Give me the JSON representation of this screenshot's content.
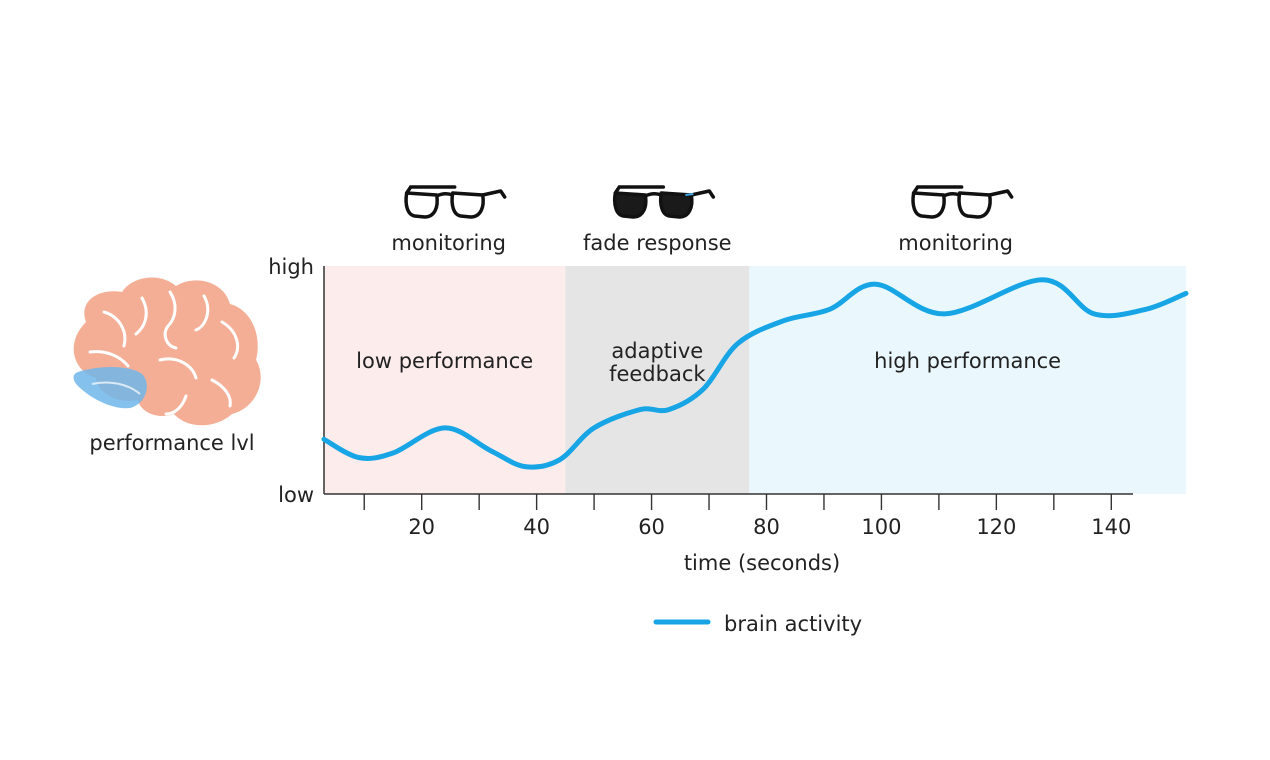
{
  "chart_data": {
    "type": "line",
    "title": "",
    "xlabel": "time (seconds)",
    "ylabel": "performance lvl",
    "xlim": [
      3,
      153
    ],
    "ylim": [
      0,
      1
    ],
    "x_ticks": [
      10,
      20,
      30,
      40,
      50,
      60,
      70,
      80,
      90,
      100,
      110,
      120,
      130,
      140
    ],
    "x_tick_labels": [
      "20",
      "40",
      "60",
      "80",
      "100",
      "120",
      "140"
    ],
    "x_tick_label_values": [
      20,
      40,
      60,
      80,
      100,
      120,
      140
    ],
    "y_tick_labels": [
      "high",
      "low"
    ],
    "y_tick_label_values": [
      1,
      0
    ],
    "phases": [
      {
        "start": 3,
        "end": 45,
        "color": "#fdecec",
        "region_label": "low performance",
        "top_label": "monitoring",
        "icon": "clear-glasses-icon"
      },
      {
        "start": 45,
        "end": 77,
        "color": "#e5e5e5",
        "region_label": "adaptive\nfeedback",
        "top_label": "fade response",
        "icon": "tinted-glasses-icon"
      },
      {
        "start": 77,
        "end": 153,
        "color": "#eaf8fd",
        "region_label": "high performance",
        "top_label": "monitoring",
        "icon": "clear-glasses-icon"
      }
    ],
    "series": [
      {
        "name": "brain activity",
        "color": "#17a5e6",
        "x": [
          3,
          9,
          15,
          24,
          32,
          38,
          44,
          50,
          58,
          63,
          69,
          75,
          83,
          91,
          99,
          111,
          128,
          137,
          146,
          153
        ],
        "y": [
          0.24,
          0.16,
          0.18,
          0.29,
          0.19,
          0.12,
          0.15,
          0.29,
          0.37,
          0.37,
          0.46,
          0.66,
          0.76,
          0.81,
          0.92,
          0.79,
          0.94,
          0.79,
          0.81,
          0.88
        ]
      }
    ],
    "legend": {
      "position": "bottom-center",
      "entries": [
        "brain activity"
      ]
    }
  },
  "colors": {
    "brain": "#f4ae95",
    "brain_highlight": "#6fb6ea",
    "axis": "#333333"
  }
}
